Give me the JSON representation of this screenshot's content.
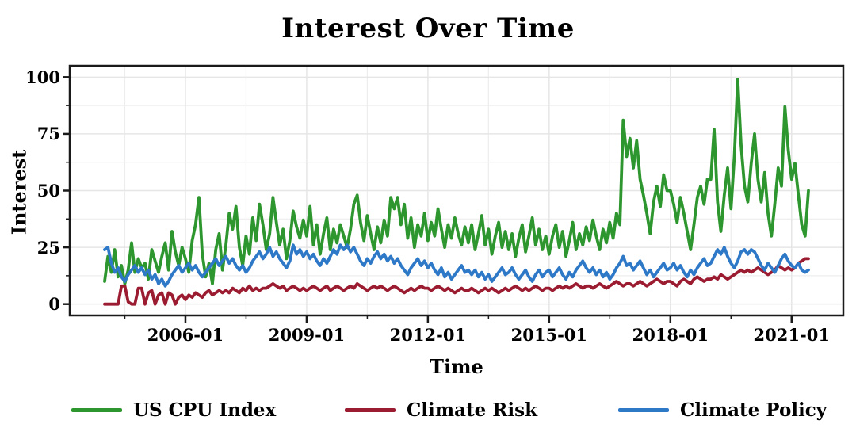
{
  "colors": {
    "us_cpu_index": "#2e962e",
    "climate_risk": "#9b1b30",
    "climate_policy": "#2e78c8",
    "grid_major": "#e6e6e6",
    "grid_minor": "#ededed",
    "panel_border": "#1a1a1a",
    "text": "#000000",
    "background": "#ffffff"
  },
  "chart_data": {
    "type": "line",
    "title": "Interest Over Time",
    "xlabel": "Time",
    "ylabel": "Interest",
    "ylim": [
      0,
      100
    ],
    "y_ticks": [
      0,
      25,
      50,
      75,
      100
    ],
    "x_ticks": [
      "2006-01",
      "2009-01",
      "2012-01",
      "2015-01",
      "2018-01",
      "2021-01"
    ],
    "x_start": "2004-01",
    "x_end": "2021-06",
    "frequency": "monthly",
    "grid": "on",
    "legend_position": "bottom",
    "series": [
      {
        "name": "US CPU Index",
        "color": "#2e962e",
        "values": [
          10,
          21,
          14,
          24,
          12,
          17,
          9,
          15,
          27,
          14,
          20,
          16,
          18,
          11,
          24,
          19,
          14,
          21,
          27,
          15,
          32,
          23,
          17,
          25,
          20,
          14,
          28,
          35,
          47,
          22,
          12,
          18,
          9,
          24,
          31,
          15,
          26,
          40,
          33,
          43,
          25,
          17,
          30,
          22,
          38,
          28,
          44,
          35,
          24,
          31,
          47,
          36,
          26,
          33,
          20,
          28,
          41,
          34,
          29,
          37,
          30,
          43,
          26,
          35,
          22,
          31,
          38,
          24,
          33,
          27,
          35,
          30,
          25,
          33,
          44,
          48,
          36,
          28,
          39,
          31,
          24,
          34,
          27,
          37,
          30,
          47,
          42,
          47,
          35,
          44,
          29,
          38,
          25,
          35,
          30,
          40,
          28,
          36,
          30,
          42,
          33,
          25,
          35,
          29,
          38,
          31,
          26,
          34,
          27,
          35,
          24,
          31,
          39,
          26,
          33,
          22,
          30,
          36,
          25,
          32,
          24,
          31,
          21,
          29,
          35,
          23,
          30,
          38,
          26,
          33,
          24,
          30,
          22,
          30,
          35,
          25,
          32,
          21,
          28,
          36,
          24,
          31,
          26,
          34,
          28,
          37,
          30,
          24,
          33,
          27,
          36,
          29,
          40,
          35,
          81,
          65,
          73,
          60,
          72,
          55,
          48,
          40,
          31,
          45,
          52,
          43,
          57,
          50,
          50,
          44,
          36,
          47,
          40,
          32,
          24,
          35,
          47,
          52,
          44,
          55,
          55,
          77,
          45,
          32,
          48,
          60,
          42,
          65,
          99,
          70,
          52,
          45,
          62,
          75,
          55,
          45,
          58,
          40,
          30,
          44,
          60,
          52,
          87,
          68,
          55,
          62,
          48,
          35,
          30,
          50
        ]
      },
      {
        "name": "Climate Risk",
        "color": "#9b1b30",
        "values": [
          0,
          0,
          0,
          0,
          0,
          8,
          8,
          1,
          0,
          0,
          7,
          7,
          0,
          5,
          6,
          0,
          4,
          5,
          0,
          5,
          4,
          0,
          3,
          4,
          2,
          4,
          3,
          5,
          4,
          3,
          5,
          6,
          4,
          5,
          6,
          5,
          6,
          5,
          7,
          6,
          5,
          7,
          6,
          8,
          6,
          7,
          6,
          7,
          7,
          8,
          9,
          8,
          7,
          8,
          6,
          7,
          8,
          7,
          6,
          7,
          6,
          7,
          8,
          7,
          6,
          7,
          8,
          6,
          7,
          8,
          7,
          6,
          7,
          8,
          7,
          9,
          8,
          7,
          6,
          7,
          8,
          7,
          8,
          7,
          6,
          7,
          8,
          7,
          6,
          5,
          6,
          7,
          6,
          7,
          8,
          7,
          7,
          6,
          7,
          8,
          7,
          6,
          7,
          6,
          5,
          6,
          7,
          6,
          6,
          7,
          6,
          5,
          6,
          7,
          6,
          7,
          6,
          5,
          6,
          7,
          6,
          7,
          8,
          7,
          6,
          7,
          6,
          7,
          8,
          7,
          6,
          7,
          7,
          6,
          7,
          8,
          7,
          8,
          7,
          8,
          9,
          8,
          7,
          8,
          8,
          7,
          8,
          9,
          8,
          7,
          8,
          9,
          10,
          9,
          8,
          9,
          9,
          8,
          9,
          10,
          9,
          8,
          9,
          10,
          11,
          10,
          9,
          10,
          10,
          9,
          8,
          10,
          11,
          10,
          9,
          11,
          12,
          11,
          10,
          11,
          11,
          12,
          11,
          13,
          12,
          11,
          12,
          13,
          14,
          15,
          14,
          15,
          14,
          15,
          16,
          15,
          14,
          13,
          14,
          15,
          17,
          16,
          15,
          16,
          15,
          16,
          18,
          19,
          20,
          20
        ]
      },
      {
        "name": "Climate Policy",
        "color": "#2e78c8",
        "values": [
          24,
          25,
          18,
          14,
          16,
          12,
          10,
          13,
          15,
          17,
          14,
          16,
          13,
          15,
          11,
          13,
          9,
          11,
          8,
          10,
          13,
          15,
          17,
          14,
          16,
          18,
          15,
          17,
          14,
          12,
          14,
          16,
          18,
          20,
          17,
          19,
          21,
          18,
          20,
          17,
          15,
          17,
          14,
          16,
          19,
          21,
          23,
          20,
          22,
          25,
          21,
          23,
          20,
          18,
          16,
          19,
          26,
          22,
          24,
          21,
          23,
          20,
          22,
          19,
          17,
          20,
          18,
          21,
          24,
          22,
          26,
          24,
          26,
          23,
          25,
          22,
          19,
          17,
          20,
          18,
          21,
          23,
          20,
          22,
          19,
          21,
          18,
          20,
          17,
          15,
          13,
          16,
          18,
          20,
          17,
          19,
          16,
          18,
          15,
          13,
          16,
          12,
          14,
          11,
          13,
          15,
          17,
          14,
          15,
          13,
          15,
          12,
          14,
          11,
          13,
          10,
          12,
          14,
          16,
          13,
          14,
          16,
          13,
          11,
          13,
          15,
          12,
          10,
          13,
          15,
          12,
          14,
          15,
          12,
          14,
          16,
          13,
          11,
          14,
          12,
          15,
          17,
          19,
          16,
          14,
          16,
          13,
          15,
          12,
          14,
          11,
          13,
          16,
          18,
          21,
          17,
          18,
          15,
          17,
          19,
          16,
          13,
          15,
          12,
          14,
          16,
          18,
          15,
          16,
          18,
          15,
          17,
          14,
          12,
          15,
          13,
          16,
          18,
          20,
          17,
          18,
          21,
          24,
          22,
          25,
          21,
          18,
          16,
          19,
          23,
          24,
          22,
          24,
          23,
          20,
          17,
          15,
          18,
          16,
          14,
          17,
          20,
          22,
          19,
          17,
          16,
          18,
          15,
          14,
          15
        ]
      }
    ]
  }
}
